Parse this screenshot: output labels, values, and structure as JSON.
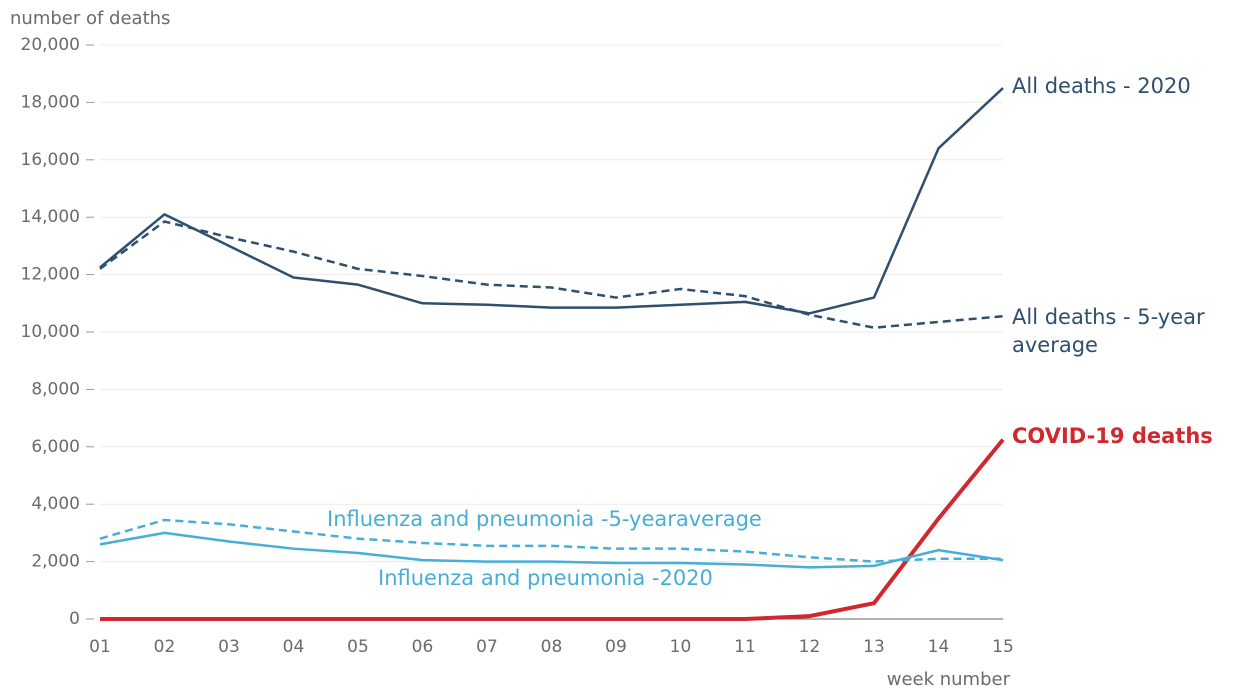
{
  "chart_data": {
    "type": "line",
    "y_label": "number of deaths",
    "x_label": "week number",
    "categories": [
      "01",
      "02",
      "03",
      "04",
      "05",
      "06",
      "07",
      "08",
      "09",
      "10",
      "11",
      "12",
      "13",
      "14",
      "15"
    ],
    "ylim": [
      0,
      20000
    ],
    "yticks": [
      0,
      {
        "value": 2000,
        "label": "2,000"
      },
      {
        "value": 4000,
        "label": "4,000"
      },
      {
        "value": 6000,
        "label": "6,000"
      },
      {
        "value": 8000,
        "label": "8,000"
      },
      {
        "value": 10000,
        "label": "10,000"
      },
      {
        "value": 12000,
        "label": "12,000"
      },
      {
        "value": 14000,
        "label": "14,000"
      },
      {
        "value": 16000,
        "label": "16,000"
      },
      {
        "value": 18000,
        "label": "18,000"
      },
      {
        "value": 20000,
        "label": "20,000"
      }
    ],
    "grid": true,
    "series": [
      {
        "name": "All deaths - 2020",
        "color": "#2f4f6f",
        "dashed": false,
        "values": [
          12250,
          14100,
          13000,
          11900,
          11650,
          11000,
          10950,
          10850,
          10850,
          10950,
          11050,
          10650,
          11200,
          16400,
          18500
        ]
      },
      {
        "name": "All deaths - 5-year average",
        "color": "#2f4f6f",
        "dashed": true,
        "values": [
          12200,
          13850,
          13300,
          12800,
          12200,
          11950,
          11650,
          11550,
          11200,
          11500,
          11250,
          10600,
          10150,
          10350,
          10550
        ]
      },
      {
        "name": "COVID-19 deaths",
        "color": "#d0282e",
        "dashed": false,
        "bold": true,
        "values": [
          0,
          0,
          0,
          0,
          0,
          0,
          0,
          0,
          0,
          0,
          0,
          100,
          550,
          3500,
          6250
        ]
      },
      {
        "name": "Influenza and pneumonia -5-yearaverage",
        "color": "#48aed6",
        "dashed": true,
        "values": [
          2800,
          3450,
          3300,
          3050,
          2800,
          2650,
          2550,
          2550,
          2450,
          2450,
          2350,
          2150,
          2000,
          2100,
          2100
        ]
      },
      {
        "name": "Influenza and pneumonia -2020",
        "color": "#48aed6",
        "dashed": false,
        "values": [
          2600,
          3000,
          2700,
          2450,
          2300,
          2050,
          2000,
          2000,
          1950,
          1950,
          1900,
          1800,
          1850,
          2400,
          2050
        ]
      }
    ]
  }
}
